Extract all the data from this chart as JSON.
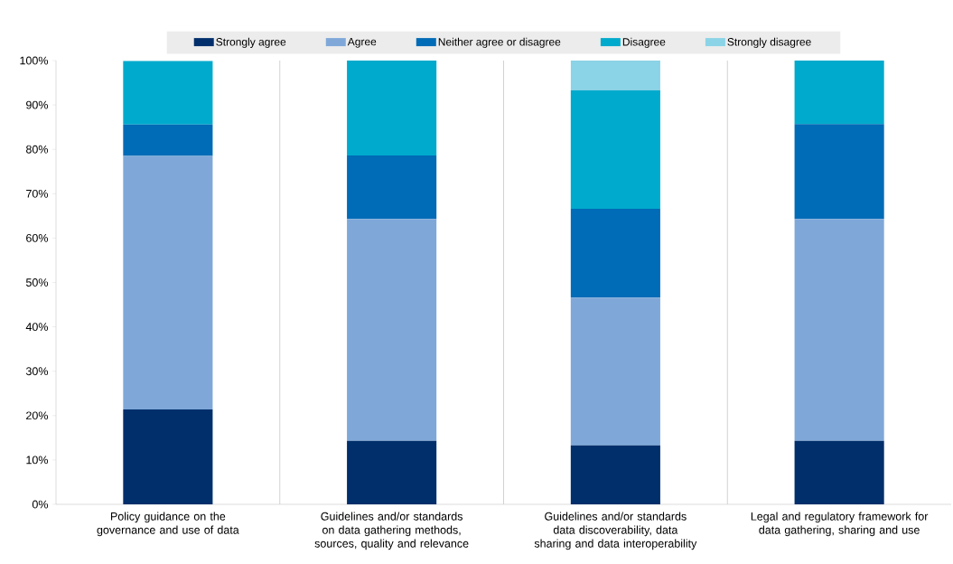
{
  "chart_data": {
    "type": "bar",
    "stacked": true,
    "categories": [
      "Policy guidance on the governance and use of data",
      "Guidelines and/or standards on data gathering methods, sources, quality and relevance",
      "Guidelines and/or standards data discoverability, data sharing and data interoperability",
      "Legal and regulatory framework for data gathering, sharing and use"
    ],
    "series": [
      {
        "name": "Strongly agree",
        "color": "#002f6c",
        "values": [
          21.4,
          14.3,
          13.3,
          14.3
        ]
      },
      {
        "name": "Agree",
        "color": "#7fa8d9",
        "values": [
          57.1,
          50.0,
          33.3,
          50.0
        ]
      },
      {
        "name": "Neither agree or disagree",
        "color": "#006bb6",
        "values": [
          7.1,
          14.3,
          20.0,
          21.4
        ]
      },
      {
        "name": "Disagree",
        "color": "#00aacc",
        "values": [
          14.3,
          21.4,
          26.7,
          14.3
        ]
      },
      {
        "name": "Strongly disagree",
        "color": "#8bd3e6",
        "values": [
          0,
          0,
          6.7,
          0
        ]
      }
    ],
    "ylim": [
      0,
      100
    ],
    "yticks": [
      {
        "value": 0,
        "label": "0%"
      },
      {
        "value": 10,
        "label": "10%"
      },
      {
        "value": 20,
        "label": "20%"
      },
      {
        "value": 30,
        "label": "30%"
      },
      {
        "value": 40,
        "label": "40%"
      },
      {
        "value": 50,
        "label": "50%"
      },
      {
        "value": 60,
        "label": "60%"
      },
      {
        "value": 70,
        "label": "70%"
      },
      {
        "value": 80,
        "label": "80%"
      },
      {
        "value": 90,
        "label": "90%"
      },
      {
        "value": 100,
        "label": "100%"
      }
    ],
    "grid": "x",
    "legend": "top"
  }
}
